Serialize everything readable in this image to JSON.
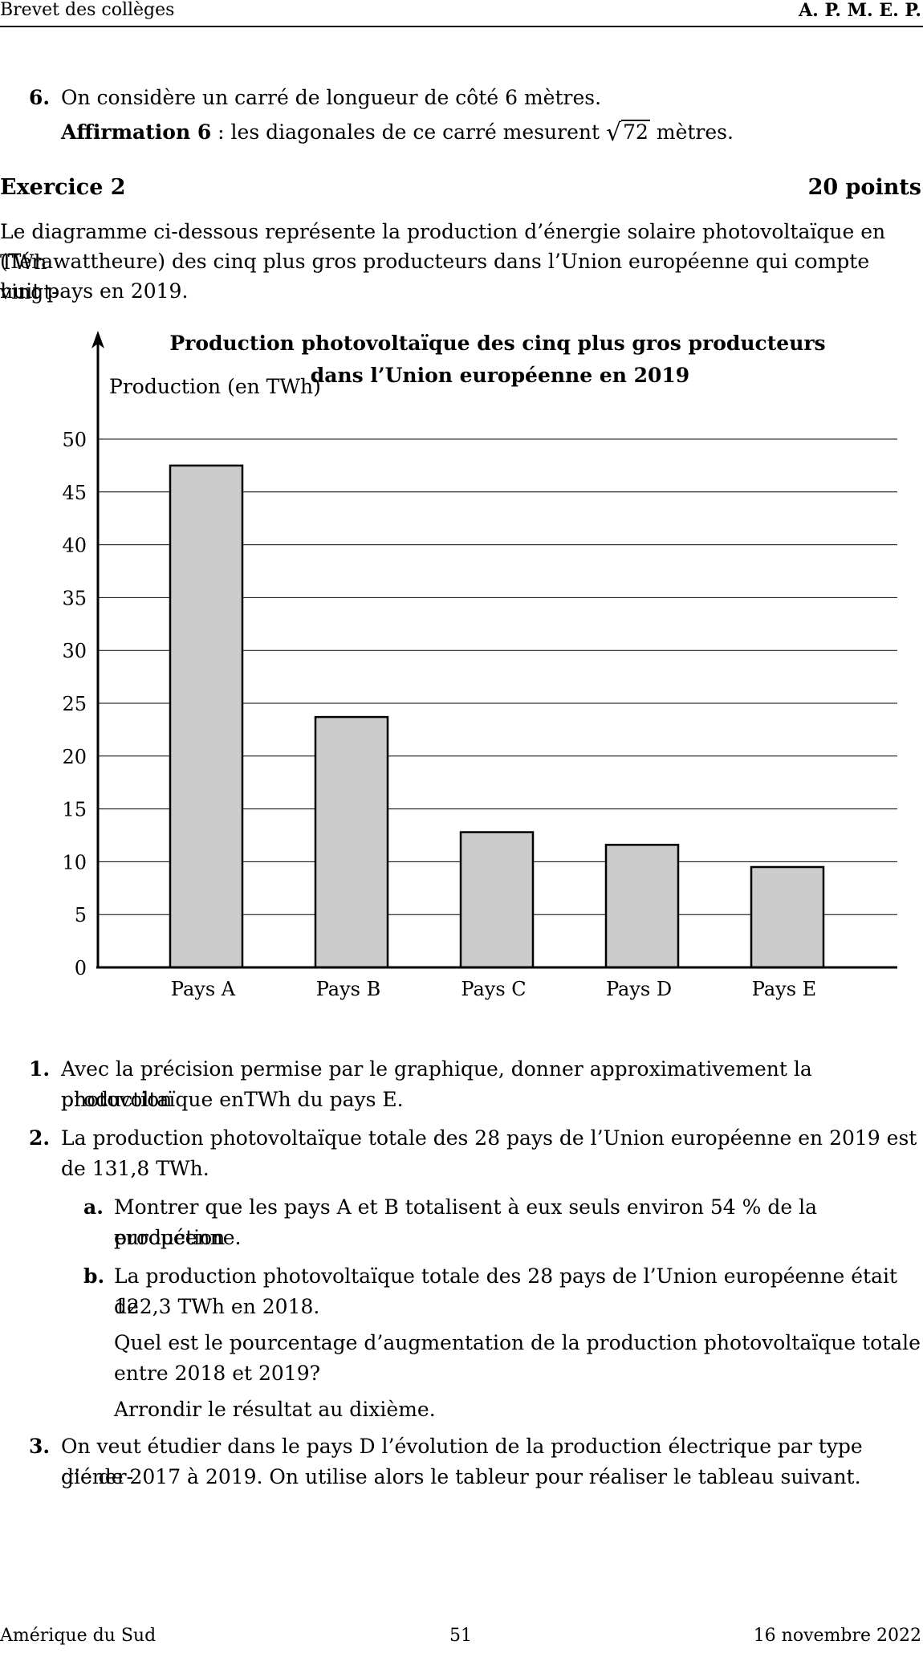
{
  "header": {
    "left": "Brevet des collèges",
    "right": "A. P. M. E. P."
  },
  "q6": {
    "num": "6.",
    "line1": "On considère un carré de longueur de côté 6 mètres.",
    "affirm_label": "Affirmation 6",
    "affirm_text": " : les diagonales de ce carré mesurent",
    "sqrt_arg": "72",
    "affirm_end": "mètres."
  },
  "exercise": {
    "title": "Exercice 2",
    "points": "20 points"
  },
  "intro": [
    "Le diagramme ci-dessous représente la production d’énergie solaire photovoltaïque en TWh",
    "(Térawattheure) des cinq plus gros producteurs dans l’Union européenne qui compte vingt-",
    "huit pays en 2019."
  ],
  "chart_data": {
    "type": "bar",
    "title": [
      "Production photovoltaïque des cinq plus gros producteurs",
      "dans l’Union européenne en 2019"
    ],
    "ylabel": "Production (en TWh)",
    "categories": [
      "Pays A",
      "Pays B",
      "Pays C",
      "Pays D",
      "Pays E"
    ],
    "values": [
      47.5,
      23.7,
      12.8,
      11.6,
      9.5
    ],
    "ylim": [
      0,
      50
    ],
    "yticks": [
      0,
      5,
      10,
      15,
      20,
      25,
      30,
      35,
      40,
      45,
      50
    ],
    "grid": true,
    "bar_color": "#cccccc"
  },
  "questions": {
    "q1_num": "1.",
    "q1_l1": "Avec la précision permise par le graphique, donner approximativement la production",
    "q1_l2": "photovoltaïque enTWh du pays E.",
    "q2_num": "2.",
    "q2_l1": "La production photovoltaïque totale des 28 pays de l’Union européenne en 2019 est",
    "q2_l2": "de 131,8 TWh.",
    "a_num": "a.",
    "a_l1": "Montrer que les pays A et B totalisent à eux seuls environ 54 % de la production",
    "a_l2": "européenne.",
    "b_num": "b.",
    "b_l1": "La production photovoltaïque totale des 28 pays de l’Union européenne était de",
    "b_l2": "122,3 TWh en 2018.",
    "b_l3": "Quel est le pourcentage d’augmentation de la production photovoltaïque totale",
    "b_l4": "entre 2018 et 2019?",
    "b_l5": "Arrondir le résultat au dixième.",
    "q3_num": "3.",
    "q3_l1": "On veut étudier dans le pays D l’évolution de la production électrique par type d’éner-",
    "q3_l2": "gie de 2017 à 2019. On utilise alors le tableur pour réaliser le tableau suivant."
  },
  "footer": {
    "left": "Amérique du Sud",
    "center": "51",
    "right": "16 novembre 2022"
  }
}
